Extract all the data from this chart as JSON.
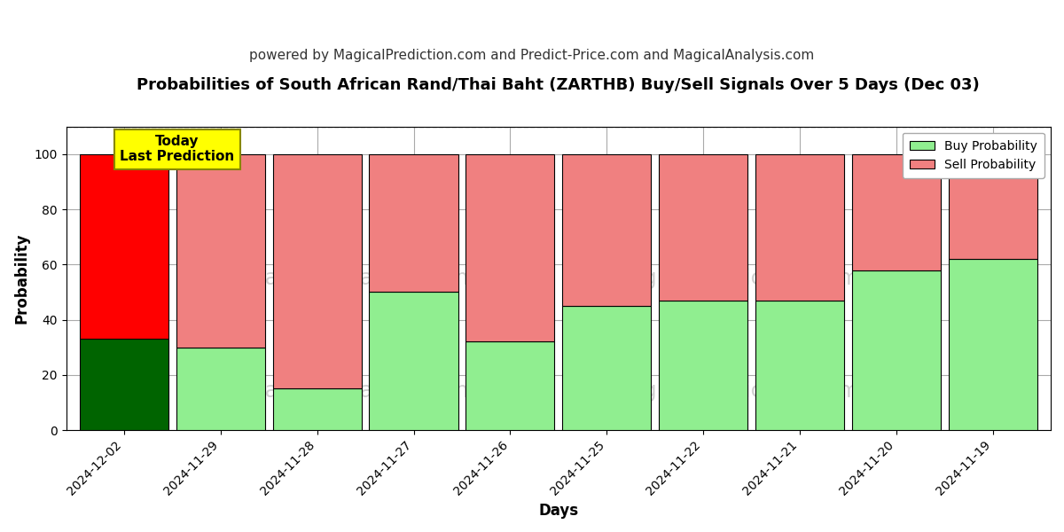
{
  "title": "Probabilities of South African Rand/Thai Baht (ZARTHB) Buy/Sell Signals Over 5 Days (Dec 03)",
  "subtitle": "powered by MagicalPrediction.com and Predict-Price.com and MagicalAnalysis.com",
  "xlabel": "Days",
  "ylabel": "Probability",
  "categories": [
    "2024-12-02",
    "2024-11-29",
    "2024-11-28",
    "2024-11-27",
    "2024-11-26",
    "2024-11-25",
    "2024-11-22",
    "2024-11-21",
    "2024-11-20",
    "2024-11-19"
  ],
  "buy_values": [
    33,
    30,
    15,
    50,
    32,
    45,
    47,
    47,
    58,
    62
  ],
  "sell_values": [
    67,
    70,
    85,
    50,
    68,
    55,
    53,
    53,
    42,
    38
  ],
  "buy_color_today": "#006400",
  "sell_color_today": "#FF0000",
  "buy_color_rest": "#90EE90",
  "sell_color_rest": "#F08080",
  "bar_edge_color": "#000000",
  "ylim": [
    0,
    110
  ],
  "yticks": [
    0,
    20,
    40,
    60,
    80,
    100
  ],
  "dashed_line_y": 110,
  "today_label": "Today\nLast Prediction",
  "today_label_bg": "#FFFF00",
  "today_label_fg": "#000000",
  "legend_buy_label": "Buy Probability",
  "legend_sell_label": "Sell Probability",
  "watermark_color": "#cccccc",
  "grid_color": "#aaaaaa",
  "background_color": "#ffffff",
  "title_fontsize": 13,
  "subtitle_fontsize": 11,
  "axis_label_fontsize": 12,
  "tick_fontsize": 10,
  "bar_width": 0.92
}
